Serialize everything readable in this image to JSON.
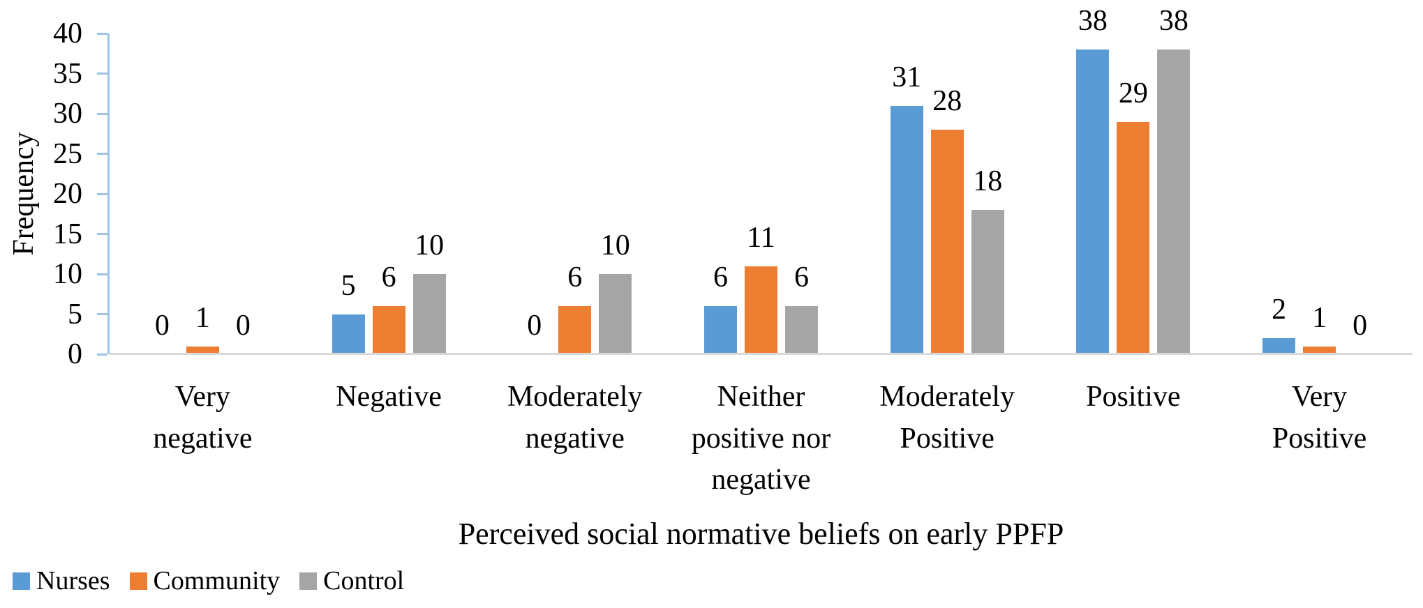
{
  "chart_data": {
    "type": "bar",
    "ylabel": "Frequency",
    "xlabel": "Perceived social normative beliefs on early PPFP",
    "ylim": [
      0,
      40
    ],
    "yticks": [
      0,
      5,
      10,
      15,
      20,
      25,
      30,
      35,
      40
    ],
    "grid": false,
    "data_labels": true,
    "legend_position": "bottom-left",
    "categories": [
      "Very negative",
      "Negative",
      "Moderately negative",
      "Neither positive nor negative",
      "Moderately Positive",
      "Positive",
      "Very Positive"
    ],
    "category_lines": [
      [
        "Very",
        "negative"
      ],
      [
        "Negative"
      ],
      [
        "Moderately",
        "negative"
      ],
      [
        "Neither",
        "positive nor",
        "negative"
      ],
      [
        "Moderately",
        "Positive"
      ],
      [
        "Positive"
      ],
      [
        "Very",
        "Positive"
      ]
    ],
    "series": [
      {
        "name": "Nurses",
        "color": "#5B9BD5",
        "values": [
          0,
          5,
          0,
          6,
          31,
          38,
          2
        ]
      },
      {
        "name": "Community",
        "color": "#ED7D31",
        "values": [
          1,
          6,
          6,
          11,
          28,
          29,
          1
        ]
      },
      {
        "name": "Control",
        "color": "#A5A5A5",
        "values": [
          0,
          10,
          10,
          6,
          18,
          38,
          0
        ]
      }
    ],
    "colors": {
      "y_axis": "#9DC3E6",
      "x_axis": "#D9D9D9",
      "text": "#000000",
      "background": "#FFFFFF"
    }
  }
}
